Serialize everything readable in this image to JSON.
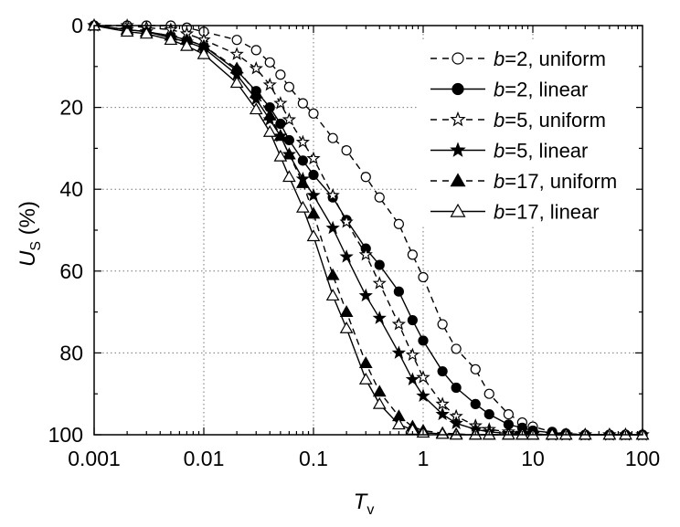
{
  "chart_data": {
    "type": "line",
    "xscale": "log",
    "xlim": [
      0.001,
      100
    ],
    "ylim": [
      0,
      100
    ],
    "y_inverted": true,
    "grid": "dotted",
    "legend_position": "top-right",
    "xlabel": {
      "main": "T",
      "sub": "v"
    },
    "ylabel": {
      "main": "U",
      "sub": "S",
      "suffix": " (%)"
    },
    "x_ticks": [
      0.001,
      0.01,
      0.1,
      1,
      10,
      100
    ],
    "x_tick_labels": [
      "0.001",
      "0.01",
      "0.1",
      "1",
      "10",
      "100"
    ],
    "y_ticks": [
      0,
      20,
      40,
      60,
      80,
      100
    ],
    "y_tick_labels": [
      "0",
      "20",
      "40",
      "60",
      "80",
      "100"
    ],
    "series": [
      {
        "name": "b=2, uniform",
        "label_italic": "b",
        "label_rest": "=2, uniform",
        "line": "dashed",
        "marker": "circle",
        "filled": false,
        "x": [
          0.001,
          0.002,
          0.003,
          0.005,
          0.007,
          0.01,
          0.02,
          0.03,
          0.04,
          0.05,
          0.06,
          0.08,
          0.1,
          0.15,
          0.2,
          0.3,
          0.4,
          0.6,
          0.8,
          1.0,
          1.5,
          2.0,
          3.0,
          4.0,
          6.0,
          8.0,
          10,
          15,
          20,
          30,
          50,
          70,
          100
        ],
        "y": [
          0,
          0,
          0,
          0,
          0.5,
          1.5,
          3.5,
          6,
          9,
          12,
          15,
          19,
          21.5,
          27.5,
          30.5,
          37,
          42,
          48.5,
          56,
          61.5,
          73,
          79,
          84,
          90,
          95,
          97,
          98,
          99.3,
          99.7,
          100,
          100,
          100,
          100
        ]
      },
      {
        "name": "b=2, linear",
        "label_italic": "b",
        "label_rest": "=2, linear",
        "line": "solid",
        "marker": "circle",
        "filled": true,
        "x": [
          0.001,
          0.002,
          0.003,
          0.005,
          0.007,
          0.01,
          0.02,
          0.03,
          0.04,
          0.05,
          0.06,
          0.08,
          0.1,
          0.15,
          0.2,
          0.3,
          0.4,
          0.6,
          0.8,
          1.0,
          1.5,
          2.0,
          3.0,
          4.0,
          6.0,
          8.0,
          10,
          15,
          20,
          30,
          50,
          70,
          100
        ],
        "y": [
          0,
          1,
          1.5,
          2.5,
          3.5,
          5,
          11,
          16,
          20,
          24,
          28,
          33,
          36.5,
          42,
          47.5,
          54.5,
          58.5,
          65,
          72,
          77,
          84.5,
          88.5,
          92.5,
          95,
          97.5,
          98.3,
          99,
          99.5,
          99.8,
          100,
          100,
          100,
          100
        ]
      },
      {
        "name": "b=5, uniform",
        "label_italic": "b",
        "label_rest": "=5, uniform",
        "line": "dashed",
        "marker": "star",
        "filled": false,
        "x": [
          0.001,
          0.002,
          0.003,
          0.005,
          0.007,
          0.01,
          0.02,
          0.03,
          0.04,
          0.05,
          0.06,
          0.08,
          0.1,
          0.15,
          0.2,
          0.3,
          0.4,
          0.6,
          0.8,
          1.0,
          1.5,
          2.0,
          3.0,
          4.0,
          6.0,
          8.0,
          10,
          15,
          20,
          30,
          50,
          70,
          100
        ],
        "y": [
          0,
          0,
          0.5,
          1,
          2,
          3.5,
          7,
          10.5,
          14.5,
          19,
          23,
          28.5,
          32.5,
          41.5,
          48,
          56,
          63,
          73,
          80.5,
          86,
          92.5,
          95.5,
          97.8,
          98.7,
          99.3,
          99.6,
          99.8,
          100,
          100,
          100,
          100,
          100,
          100
        ]
      },
      {
        "name": "b=5, linear",
        "label_italic": "b",
        "label_rest": "=5, linear",
        "line": "solid",
        "marker": "star",
        "filled": true,
        "x": [
          0.001,
          0.002,
          0.003,
          0.005,
          0.007,
          0.01,
          0.02,
          0.03,
          0.04,
          0.05,
          0.06,
          0.08,
          0.1,
          0.15,
          0.2,
          0.3,
          0.4,
          0.6,
          0.8,
          1.0,
          1.5,
          2.0,
          3.0,
          4.0,
          6.0,
          8.0,
          10,
          15,
          20,
          30,
          50,
          70,
          100
        ],
        "y": [
          0,
          1,
          1.5,
          3,
          4,
          5.5,
          12,
          18,
          23,
          27,
          31.5,
          37.5,
          41.5,
          49.5,
          56.5,
          66,
          71.5,
          80,
          86.5,
          90.5,
          95,
          97.2,
          98.7,
          99.3,
          99.7,
          99.8,
          99.9,
          100,
          100,
          100,
          100,
          100,
          100
        ]
      },
      {
        "name": "b=17, uniform",
        "label_italic": "b",
        "label_rest": "=17, uniform",
        "line": "dashed",
        "marker": "triangle",
        "filled": true,
        "x": [
          0.001,
          0.002,
          0.003,
          0.005,
          0.007,
          0.01,
          0.02,
          0.03,
          0.04,
          0.05,
          0.06,
          0.08,
          0.1,
          0.15,
          0.2,
          0.3,
          0.4,
          0.6,
          0.8,
          1.0,
          1.5,
          2.0,
          3.0,
          4.0,
          6.0,
          8.0,
          10,
          15,
          20,
          30,
          50,
          70,
          100
        ],
        "y": [
          0,
          1,
          1.5,
          2.5,
          3.5,
          5,
          10.5,
          16.5,
          22,
          27,
          31.5,
          38.5,
          46,
          61,
          70,
          82.5,
          89.5,
          95.5,
          98,
          99,
          99.6,
          99.8,
          100,
          100,
          100,
          100,
          100,
          100,
          100,
          100,
          100,
          100,
          100
        ]
      },
      {
        "name": "b=17, linear",
        "label_italic": "b",
        "label_rest": "=17, linear",
        "line": "solid",
        "marker": "triangle",
        "filled": false,
        "x": [
          0.001,
          0.002,
          0.003,
          0.005,
          0.007,
          0.01,
          0.02,
          0.03,
          0.04,
          0.05,
          0.06,
          0.08,
          0.1,
          0.15,
          0.2,
          0.3,
          0.4,
          0.6,
          0.8,
          1.0,
          1.5,
          2.0,
          3.0,
          4.0,
          6.0,
          8.0,
          10,
          15,
          20,
          30,
          50,
          70,
          100
        ],
        "y": [
          0,
          1.5,
          2,
          3.5,
          5,
          7,
          14,
          20.5,
          26,
          32,
          37,
          44.5,
          51.5,
          66,
          74,
          86.5,
          92.5,
          97.5,
          98.8,
          99.5,
          99.8,
          100,
          100,
          100,
          100,
          100,
          100,
          100,
          100,
          100,
          100,
          100,
          100
        ]
      }
    ]
  }
}
